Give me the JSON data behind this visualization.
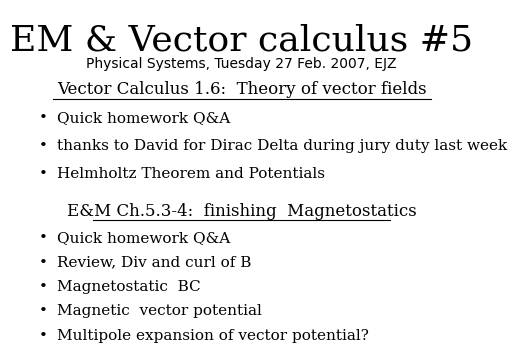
{
  "title": "EM & Vector calculus #5",
  "subtitle": "Physical Systems, Tuesday 27 Feb. 2007, EJZ",
  "section1": "Vector Calculus 1.6:  Theory of vector fields",
  "section2": "E&M Ch.5.3-4:  finishing  Magnetostatics",
  "bullets1": [
    "Quick homework Q&A",
    "thanks to David for Dirac Delta during jury duty last week",
    "Helmholtz Theorem and Potentials"
  ],
  "bullets2": [
    "Quick homework Q&A",
    "Review, Div and curl of B",
    "Magnetostatic  BC",
    "Magnetic  vector potential",
    "Multipole expansion of vector potential?"
  ],
  "bg_color": "#ffffff",
  "text_color": "#000000",
  "title_fontsize": 26,
  "subtitle_fontsize": 10,
  "section_fontsize": 12,
  "bullet_fontsize": 11,
  "bullet_char": "•"
}
